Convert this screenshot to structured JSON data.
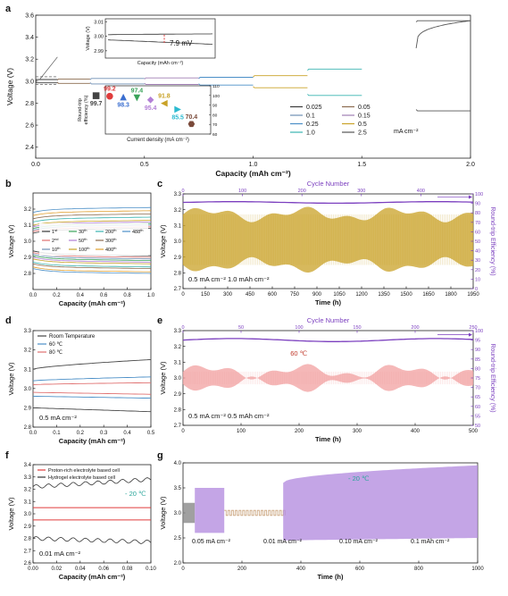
{
  "panels": [
    {
      "letter": "a",
      "chart_data": {
        "type": "line",
        "xlabel": "Capacity  (mAh cm⁻²)",
        "ylabel": "Voltage (V)",
        "xlim": [
          0,
          2.0
        ],
        "ylim": [
          2.3,
          3.6
        ],
        "xticks": [
          0.0,
          0.5,
          1.0,
          1.5,
          2.0
        ],
        "xtick_labels": [
          "0.0",
          "0.5",
          "1.0",
          "1.5",
          "2.0"
        ],
        "yticks": [
          2.4,
          2.6,
          2.8,
          3.0,
          3.2,
          3.4,
          3.6
        ],
        "ytick_labels": [
          "2.4",
          "2.6",
          "2.8",
          "3.0",
          "3.2",
          "3.4",
          "3.6"
        ],
        "legend_position": "bottom-right",
        "legend_unit": "mA cm⁻²",
        "series": [
          {
            "name": "0.025",
            "color": "#3a3a3a",
            "x_range": [
              0.0,
              0.1
            ],
            "charge": 3.015,
            "discharge": 2.985
          },
          {
            "name": "0.05",
            "color": "#8b6b4f",
            "x_range": [
              0.1,
              0.25
            ],
            "charge": 3.02,
            "discharge": 2.98
          },
          {
            "name": "0.1",
            "color": "#6e8fb3",
            "x_range": [
              0.25,
              0.5
            ],
            "charge": 3.025,
            "discharge": 2.975
          },
          {
            "name": "0.15",
            "color": "#a07fb5",
            "x_range": [
              0.5,
              0.75
            ],
            "charge": 3.03,
            "discharge": 2.97
          },
          {
            "name": "0.25",
            "color": "#4b8fc7",
            "x_range": [
              0.75,
              1.0
            ],
            "charge": 3.035,
            "discharge": 2.965
          },
          {
            "name": "0.5",
            "color": "#c9a227",
            "x_range": [
              1.0,
              1.25
            ],
            "charge": 3.05,
            "discharge": 2.94
          },
          {
            "name": "1.0",
            "color": "#38b3b0",
            "x_range": [
              1.25,
              1.5
            ],
            "charge": 3.11,
            "discharge": 2.87
          },
          {
            "name": "2.5",
            "color": "#555555",
            "x_range": [
              1.75,
              2.0
            ],
            "charge": 3.55,
            "discharge": 2.73
          }
        ],
        "inset_top": {
          "xlabel": "Capacity (mAh cm⁻²)",
          "ylabel": "Voltage (V)",
          "yticks": [
            2.99,
            3.0,
            3.01
          ],
          "ytick_labels": [
            "2.99",
            "3.00",
            "3.01"
          ],
          "annotation": "7.9 mV"
        },
        "inset_bottom": {
          "xlabel": "Current density (mA cm⁻²)",
          "ylabel": "Round-trip efficiency (%)",
          "ylim": [
            60,
            110
          ],
          "yticks": [
            60,
            70,
            80,
            90,
            100,
            110
          ],
          "ytick_labels": [
            "60",
            "70",
            "80",
            "90",
            "100",
            "110"
          ],
          "points": [
            {
              "label": "99.7",
              "value": 99.7,
              "color": "#444444",
              "marker": "square"
            },
            {
              "label": "99.2",
              "value": 99.2,
              "color": "#e03c3c",
              "marker": "circle"
            },
            {
              "label": "98.3",
              "value": 98.3,
              "color": "#3b6fd0",
              "marker": "triangle-up"
            },
            {
              "label": "97.4",
              "value": 97.4,
              "color": "#3aa35a",
              "marker": "triangle-down"
            },
            {
              "label": "95.4",
              "value": 95.4,
              "color": "#b27fd6",
              "marker": "diamond"
            },
            {
              "label": "91.8",
              "value": 91.8,
              "color": "#c9a227",
              "marker": "triangle-left"
            },
            {
              "label": "85.5",
              "value": 85.5,
              "color": "#2bbad0",
              "marker": "triangle-right"
            },
            {
              "label": "70.4",
              "value": 70.4,
              "color": "#7a4a3a",
              "marker": "hexagon"
            }
          ]
        }
      }
    },
    {
      "letter": "b",
      "chart_data": {
        "type": "line",
        "xlabel": "Capacity (mAh cm⁻²)",
        "ylabel": "Voltage (V)",
        "xlim": [
          0.0,
          1.0
        ],
        "ylim": [
          2.7,
          3.3
        ],
        "xticks": [
          0.0,
          0.2,
          0.4,
          0.6,
          0.8,
          1.0
        ],
        "xtick_labels": [
          "0.0",
          "0.2",
          "0.4",
          "0.6",
          "0.8",
          "1.0"
        ],
        "yticks": [
          2.8,
          2.9,
          3.0,
          3.1,
          3.2
        ],
        "ytick_labels": [
          "2.8",
          "2.9",
          "3.0",
          "3.1",
          "3.2"
        ],
        "legend_position": "center",
        "series": [
          {
            "name": "1",
            "suffix": "st",
            "color": "#3a3a3a",
            "charge": 3.07,
            "discharge": 2.92
          },
          {
            "name": "2",
            "suffix": "nd",
            "color": "#e07070",
            "charge": 3.08,
            "discharge": 2.91
          },
          {
            "name": "10",
            "suffix": "th",
            "color": "#6e8fb3",
            "charge": 3.09,
            "discharge": 2.9
          },
          {
            "name": "30",
            "suffix": "th",
            "color": "#3aa35a",
            "charge": 3.1,
            "discharge": 2.89
          },
          {
            "name": "50",
            "suffix": "th",
            "color": "#b27fd6",
            "charge": 3.11,
            "discharge": 2.88
          },
          {
            "name": "100",
            "suffix": "th",
            "color": "#c9a227",
            "charge": 3.12,
            "discharge": 2.87
          },
          {
            "name": "200",
            "suffix": "th",
            "color": "#38b3b0",
            "charge": 3.14,
            "discharge": 2.85
          },
          {
            "name": "300",
            "suffix": "th",
            "color": "#8b6b4f",
            "charge": 3.16,
            "discharge": 2.84
          },
          {
            "name": "400",
            "suffix": "th",
            "color": "#e0a030",
            "charge": 3.18,
            "discharge": 2.82
          },
          {
            "name": "488",
            "suffix": "th",
            "color": "#4b8fc7",
            "charge": 3.2,
            "discharge": 2.81
          }
        ]
      }
    },
    {
      "letter": "c",
      "chart_data": {
        "type": "line",
        "xlabel": "Time (h)",
        "ylabel": "Voltage (V)",
        "y2label": "Round-trip Efficiency (%)",
        "top_label": "Cycle Number",
        "xlim": [
          0,
          1950
        ],
        "ylim": [
          2.7,
          3.3
        ],
        "y2lim": [
          0,
          100
        ],
        "xticks": [
          0,
          150,
          300,
          450,
          600,
          750,
          900,
          1050,
          1200,
          1350,
          1500,
          1650,
          1800,
          1950
        ],
        "xtick_labels": [
          "0",
          "150",
          "300",
          "450",
          "600",
          "750",
          "900",
          "1050",
          "1200",
          "1350",
          "1500",
          "1650",
          "1800",
          "1950"
        ],
        "yticks": [
          2.7,
          2.8,
          2.9,
          3.0,
          3.1,
          3.2,
          3.3
        ],
        "ytick_labels": [
          "2.7",
          "2.8",
          "2.9",
          "3.0",
          "3.1",
          "3.2",
          "3.3"
        ],
        "y2ticks": [
          0,
          10,
          20,
          30,
          40,
          50,
          60,
          70,
          80,
          90,
          100
        ],
        "y2tick_labels": [
          "0",
          "10",
          "20",
          "30",
          "40",
          "50",
          "60",
          "70",
          "80",
          "90",
          "100"
        ],
        "top_ticks": [
          0,
          100,
          200,
          300,
          400
        ],
        "top_tick_labels": [
          "0",
          "100",
          "200",
          "300",
          "400"
        ],
        "top_max": 488,
        "fill_color": "#c9a227",
        "efficiency_color": "#7b3fbf",
        "voltage_charge": 3.17,
        "voltage_discharge": 2.85,
        "efficiency": 91,
        "annotation": "0.5 mA cm⁻²   1.0 mAh cm⁻²"
      }
    },
    {
      "letter": "d",
      "chart_data": {
        "type": "line",
        "xlabel": "Capacity (mAh cm⁻²)",
        "ylabel": "Voltage (V)",
        "xlim": [
          0.0,
          0.5
        ],
        "ylim": [
          2.8,
          3.3
        ],
        "xticks": [
          0.0,
          0.1,
          0.2,
          0.3,
          0.4,
          0.5
        ],
        "xtick_labels": [
          "0.0",
          "0.1",
          "0.2",
          "0.3",
          "0.4",
          "0.5"
        ],
        "yticks": [
          2.8,
          2.9,
          3.0,
          3.1,
          3.2,
          3.3
        ],
        "ytick_labels": [
          "2.8",
          "2.9",
          "3.0",
          "3.1",
          "3.2",
          "3.3"
        ],
        "legend_position": "top-left",
        "annotation": "0.5 mA cm⁻²",
        "series": [
          {
            "name": "Room Temperature",
            "color": "#444444",
            "charge": [
              3.1,
              3.15
            ],
            "discharge": [
              2.9,
              2.88
            ]
          },
          {
            "name": "60 ℃",
            "color": "#4b8fc7",
            "charge": [
              3.04,
              3.06
            ],
            "discharge": [
              2.96,
              2.95
            ]
          },
          {
            "name": "80 ℃",
            "color": "#e07070",
            "charge": [
              3.02,
              3.03
            ],
            "discharge": [
              2.98,
              2.97
            ]
          }
        ]
      }
    },
    {
      "letter": "e",
      "chart_data": {
        "type": "line",
        "xlabel": "Time (h)",
        "ylabel": "Voltage (V)",
        "y2label": "Round-trip Efficiency (%)",
        "top_label": "Cycle Number",
        "xlim": [
          0,
          500
        ],
        "ylim": [
          2.7,
          3.3
        ],
        "y2lim": [
          50,
          100
        ],
        "xticks": [
          0,
          100,
          200,
          300,
          400,
          500
        ],
        "xtick_labels": [
          "0",
          "100",
          "200",
          "300",
          "400",
          "500"
        ],
        "yticks": [
          2.7,
          2.8,
          2.9,
          3.0,
          3.1,
          3.2,
          3.3
        ],
        "ytick_labels": [
          "2.7",
          "2.8",
          "2.9",
          "3.0",
          "3.1",
          "3.2",
          "3.3"
        ],
        "y2ticks": [
          50,
          55,
          60,
          65,
          70,
          75,
          80,
          85,
          90,
          95,
          100
        ],
        "y2tick_labels": [
          "50",
          "55",
          "60",
          "65",
          "70",
          "75",
          "80",
          "85",
          "90",
          "95",
          "100"
        ],
        "top_ticks": [
          0,
          50,
          100,
          150,
          200,
          250
        ],
        "top_tick_labels": [
          "0",
          "50",
          "100",
          "150",
          "200",
          "250"
        ],
        "top_max": 250,
        "fill_color": "#f2a0a0",
        "efficiency_color": "#7b3fbf",
        "voltage_charge": 3.04,
        "voltage_discharge": 2.96,
        "efficiency": 95,
        "temperature_label": "60 ℃",
        "annotation": "0.5 mA cm⁻²   0.5 mAh cm⁻²"
      }
    },
    {
      "letter": "f",
      "chart_data": {
        "type": "line",
        "xlabel": "Capacity (mAh cm⁻²)",
        "ylabel": "Voltage (V)",
        "xlim": [
          0.0,
          0.1
        ],
        "ylim": [
          2.6,
          3.4
        ],
        "xticks": [
          0.0,
          0.02,
          0.04,
          0.06,
          0.08,
          0.1
        ],
        "xtick_labels": [
          "0.00",
          "0.02",
          "0.04",
          "0.06",
          "0.08",
          "0.10"
        ],
        "yticks": [
          2.6,
          2.7,
          2.8,
          2.9,
          3.0,
          3.1,
          3.2,
          3.3,
          3.4
        ],
        "ytick_labels": [
          "2.6",
          "2.7",
          "2.8",
          "2.9",
          "3.0",
          "3.1",
          "3.2",
          "3.3",
          "3.4"
        ],
        "legend_position": "top-left",
        "temperature_label": "- 20 ℃",
        "annotation": "0.01 mA cm⁻²",
        "series": [
          {
            "name": "Proton-rich electrolyte based cell",
            "color": "#e03c3c",
            "charge": 3.05,
            "discharge": 2.95
          },
          {
            "name": "Hydrogel electrolyte based cell",
            "color": "#333333",
            "charge": [
              3.22,
              3.3
            ],
            "discharge": [
              2.8,
              2.75
            ]
          }
        ]
      }
    },
    {
      "letter": "g",
      "chart_data": {
        "type": "line",
        "xlabel": "Time (h)",
        "ylabel": "Voltage (V)",
        "xlim": [
          0,
          1000
        ],
        "ylim": [
          2.0,
          4.0
        ],
        "xticks": [
          0,
          200,
          400,
          600,
          800,
          1000
        ],
        "xtick_labels": [
          "0",
          "200",
          "400",
          "600",
          "800",
          "1000"
        ],
        "yticks": [
          2.0,
          2.5,
          3.0,
          3.5,
          4.0
        ],
        "ytick_labels": [
          "2.0",
          "2.5",
          "3.0",
          "3.5",
          "4.0"
        ],
        "fill_color": "#b58fe0",
        "temperature_label": "- 20 ℃",
        "segments": [
          {
            "x": [
              0,
              40
            ],
            "upper": 3.2,
            "lower": 2.8,
            "color": "#888888"
          },
          {
            "x": [
              40,
              140
            ],
            "upper": 3.5,
            "lower": 2.6,
            "color": "#b58fe0"
          },
          {
            "x": [
              140,
              340
            ],
            "upper": 3.05,
            "lower": 2.95,
            "color": "#c9a27a"
          },
          {
            "x": [
              340,
              1000
            ],
            "upper": [
              3.6,
              3.95
            ],
            "lower": [
              2.45,
              2.5
            ],
            "color": "#b58fe0"
          }
        ],
        "annotations": [
          "0.05 mA cm⁻²",
          "0.01 mA cm⁻²",
          "0.10 mA cm⁻²",
          "0.1 mAh cm⁻²"
        ]
      }
    }
  ]
}
